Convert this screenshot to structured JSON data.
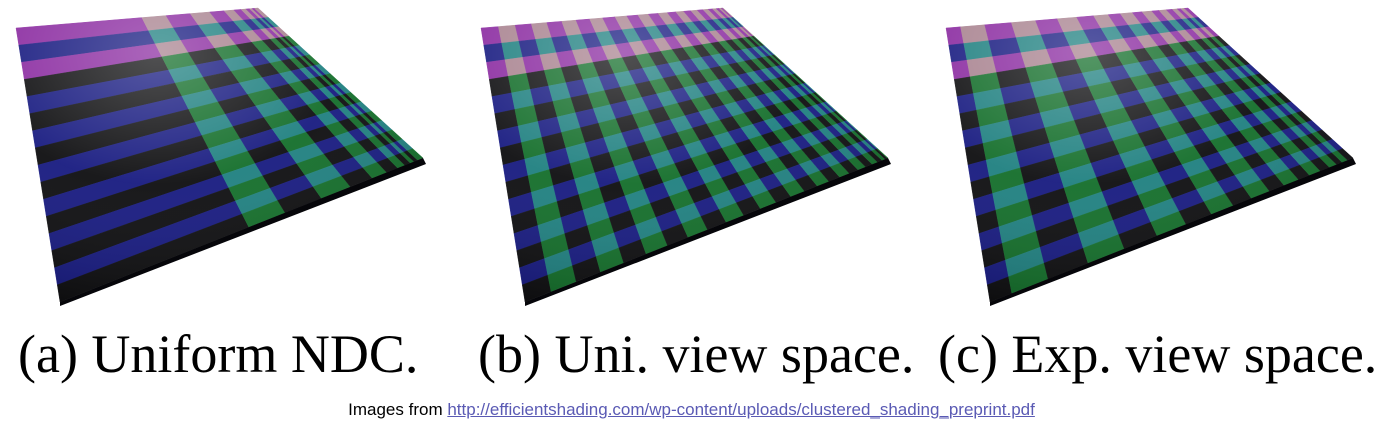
{
  "figures": [
    {
      "id": "a",
      "caption": "(a) Uniform NDC.",
      "scheme": "uniform-ndc"
    },
    {
      "id": "b",
      "caption": "(b) Uni. view space.",
      "scheme": "uniform-view"
    },
    {
      "id": "c",
      "caption": "(c) Exp. view space.",
      "scheme": "exponential-view"
    }
  ],
  "source": {
    "prefix": "Images from ",
    "url": "http://efficientshading.com/wp-content/uploads/clustered_shading_preprint.pdf"
  },
  "colors": {
    "navy": "#171a80",
    "black": "#0e0e10",
    "teal": "#1f8080",
    "green": "#136e2a",
    "magenta": "#8a2aa0",
    "mauve": "#a8828f",
    "link": "#5a5ab4"
  }
}
